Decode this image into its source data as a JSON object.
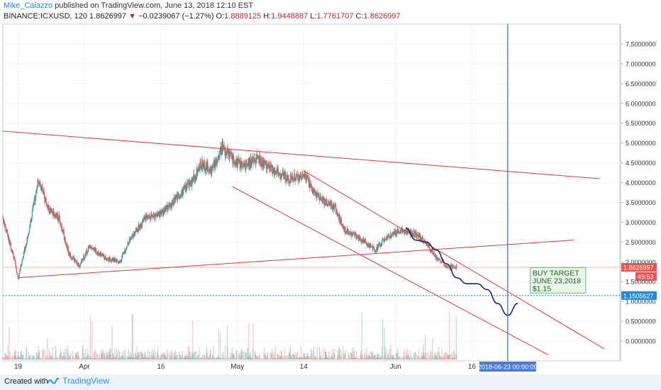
{
  "header": {
    "author": "Mike_Caiazzo",
    "published": "published on TradingView.com, June 13, 2018 12:10 EST",
    "symbol": "BINANCE:ICXUSD, 120",
    "last": "1.8626997",
    "change": "−0.0239067 (−1.27%)",
    "open_label": "O:",
    "open": "1.8889125",
    "high_label": "H:",
    "high": "1.9448887",
    "low_label": "L:",
    "low": "1.7761707",
    "close_label": "C:",
    "close": "1.8626997"
  },
  "footer": {
    "created_with": "Created with",
    "brand": "TradingView"
  },
  "colors": {
    "up": "#26a69a",
    "down": "#ef5350",
    "trendline": "#e53935",
    "projection": "#1a237e",
    "crosshair": "#2962ff",
    "target_line": "#1e88e5",
    "annotation_bg": "#e8f5e9",
    "annotation_border": "#66bb6a",
    "price_tag": "#ef5350"
  },
  "chart_data": {
    "type": "candlestick",
    "y_axis_ticks": [
      "7.5000000",
      "7.0000000",
      "6.5000000",
      "6.0000000",
      "5.5000000",
      "5.0000000",
      "4.5000000",
      "4.0000000",
      "3.5000000",
      "3.0000000",
      "2.5000000",
      "2.0000000",
      "1.5000000",
      "1.0000000",
      "0.5000000",
      "0.0000000"
    ],
    "ylim": [
      -0.5,
      8.0
    ],
    "x_axis_ticks": [
      {
        "label": "19",
        "date": "2018-03-19"
      },
      {
        "label": "Apr",
        "date": "2018-04-01"
      },
      {
        "label": "16",
        "date": "2018-04-16"
      },
      {
        "label": "May",
        "date": "2018-05-01"
      },
      {
        "label": "14",
        "date": "2018-05-14"
      },
      {
        "label": "Jun",
        "date": "2018-06-01"
      },
      {
        "label": "16",
        "date": "2018-06-16"
      }
    ],
    "xlim": [
      "2018-03-16",
      "2018-07-15"
    ],
    "price_path": [
      [
        "2018-03-16",
        3.1
      ],
      [
        "2018-03-18",
        2.2
      ],
      [
        "2018-03-19",
        1.6
      ],
      [
        "2018-03-21",
        2.7
      ],
      [
        "2018-03-23",
        4.1
      ],
      [
        "2018-03-25",
        3.3
      ],
      [
        "2018-03-27",
        3.1
      ],
      [
        "2018-03-29",
        2.2
      ],
      [
        "2018-03-31",
        1.9
      ],
      [
        "2018-04-02",
        2.4
      ],
      [
        "2018-04-05",
        2.1
      ],
      [
        "2018-04-08",
        2.0
      ],
      [
        "2018-04-10",
        2.6
      ],
      [
        "2018-04-13",
        3.1
      ],
      [
        "2018-04-16",
        3.2
      ],
      [
        "2018-04-19",
        3.6
      ],
      [
        "2018-04-22",
        4.0
      ],
      [
        "2018-04-24",
        4.5
      ],
      [
        "2018-04-26",
        4.3
      ],
      [
        "2018-04-28",
        4.9
      ],
      [
        "2018-04-30",
        4.6
      ],
      [
        "2018-05-02",
        4.4
      ],
      [
        "2018-05-05",
        4.6
      ],
      [
        "2018-05-08",
        4.3
      ],
      [
        "2018-05-11",
        4.1
      ],
      [
        "2018-05-14",
        4.2
      ],
      [
        "2018-05-17",
        3.6
      ],
      [
        "2018-05-20",
        3.4
      ],
      [
        "2018-05-22",
        2.8
      ],
      [
        "2018-05-25",
        2.6
      ],
      [
        "2018-05-28",
        2.3
      ],
      [
        "2018-05-30",
        2.6
      ],
      [
        "2018-06-02",
        2.8
      ],
      [
        "2018-06-05",
        2.7
      ],
      [
        "2018-06-07",
        2.5
      ],
      [
        "2018-06-09",
        2.1
      ],
      [
        "2018-06-11",
        1.9
      ],
      [
        "2018-06-13",
        1.86
      ]
    ],
    "last_price": {
      "value": 1.8626997,
      "label": "1.8626997"
    },
    "countdown": "49:53",
    "target_price": {
      "value": 1.1505627,
      "label": "1.1505627"
    },
    "crosshair": {
      "date": "2018-06-23",
      "label": "2018-06-23 00:00:00"
    },
    "annotation": {
      "lines": [
        "BUY TARGET",
        "JUNE 23,2018",
        "$1.15"
      ],
      "date": "2018-06-23",
      "value": 1.15
    },
    "projection": [
      [
        "2018-06-03",
        2.85
      ],
      [
        "2018-06-05",
        2.55
      ],
      [
        "2018-06-07",
        2.5
      ],
      [
        "2018-06-09",
        2.3
      ],
      [
        "2018-06-11",
        1.95
      ],
      [
        "2018-06-13",
        1.6
      ],
      [
        "2018-06-15",
        1.45
      ],
      [
        "2018-06-17",
        1.45
      ],
      [
        "2018-06-19",
        1.3
      ],
      [
        "2018-06-21",
        0.95
      ],
      [
        "2018-06-23",
        0.65
      ],
      [
        "2018-06-25",
        0.95
      ]
    ],
    "trendlines": [
      [
        [
          "2018-03-16",
          5.3
        ],
        [
          "2018-07-11",
          4.1
        ]
      ],
      [
        [
          "2018-03-19",
          1.6
        ],
        [
          "2018-07-06",
          2.55
        ]
      ],
      [
        [
          "2018-04-30",
          3.9
        ],
        [
          "2018-07-01",
          -0.35
        ]
      ],
      [
        [
          "2018-05-14",
          4.3
        ],
        [
          "2018-07-12",
          -0.2
        ]
      ]
    ],
    "volume_max": 8
  }
}
